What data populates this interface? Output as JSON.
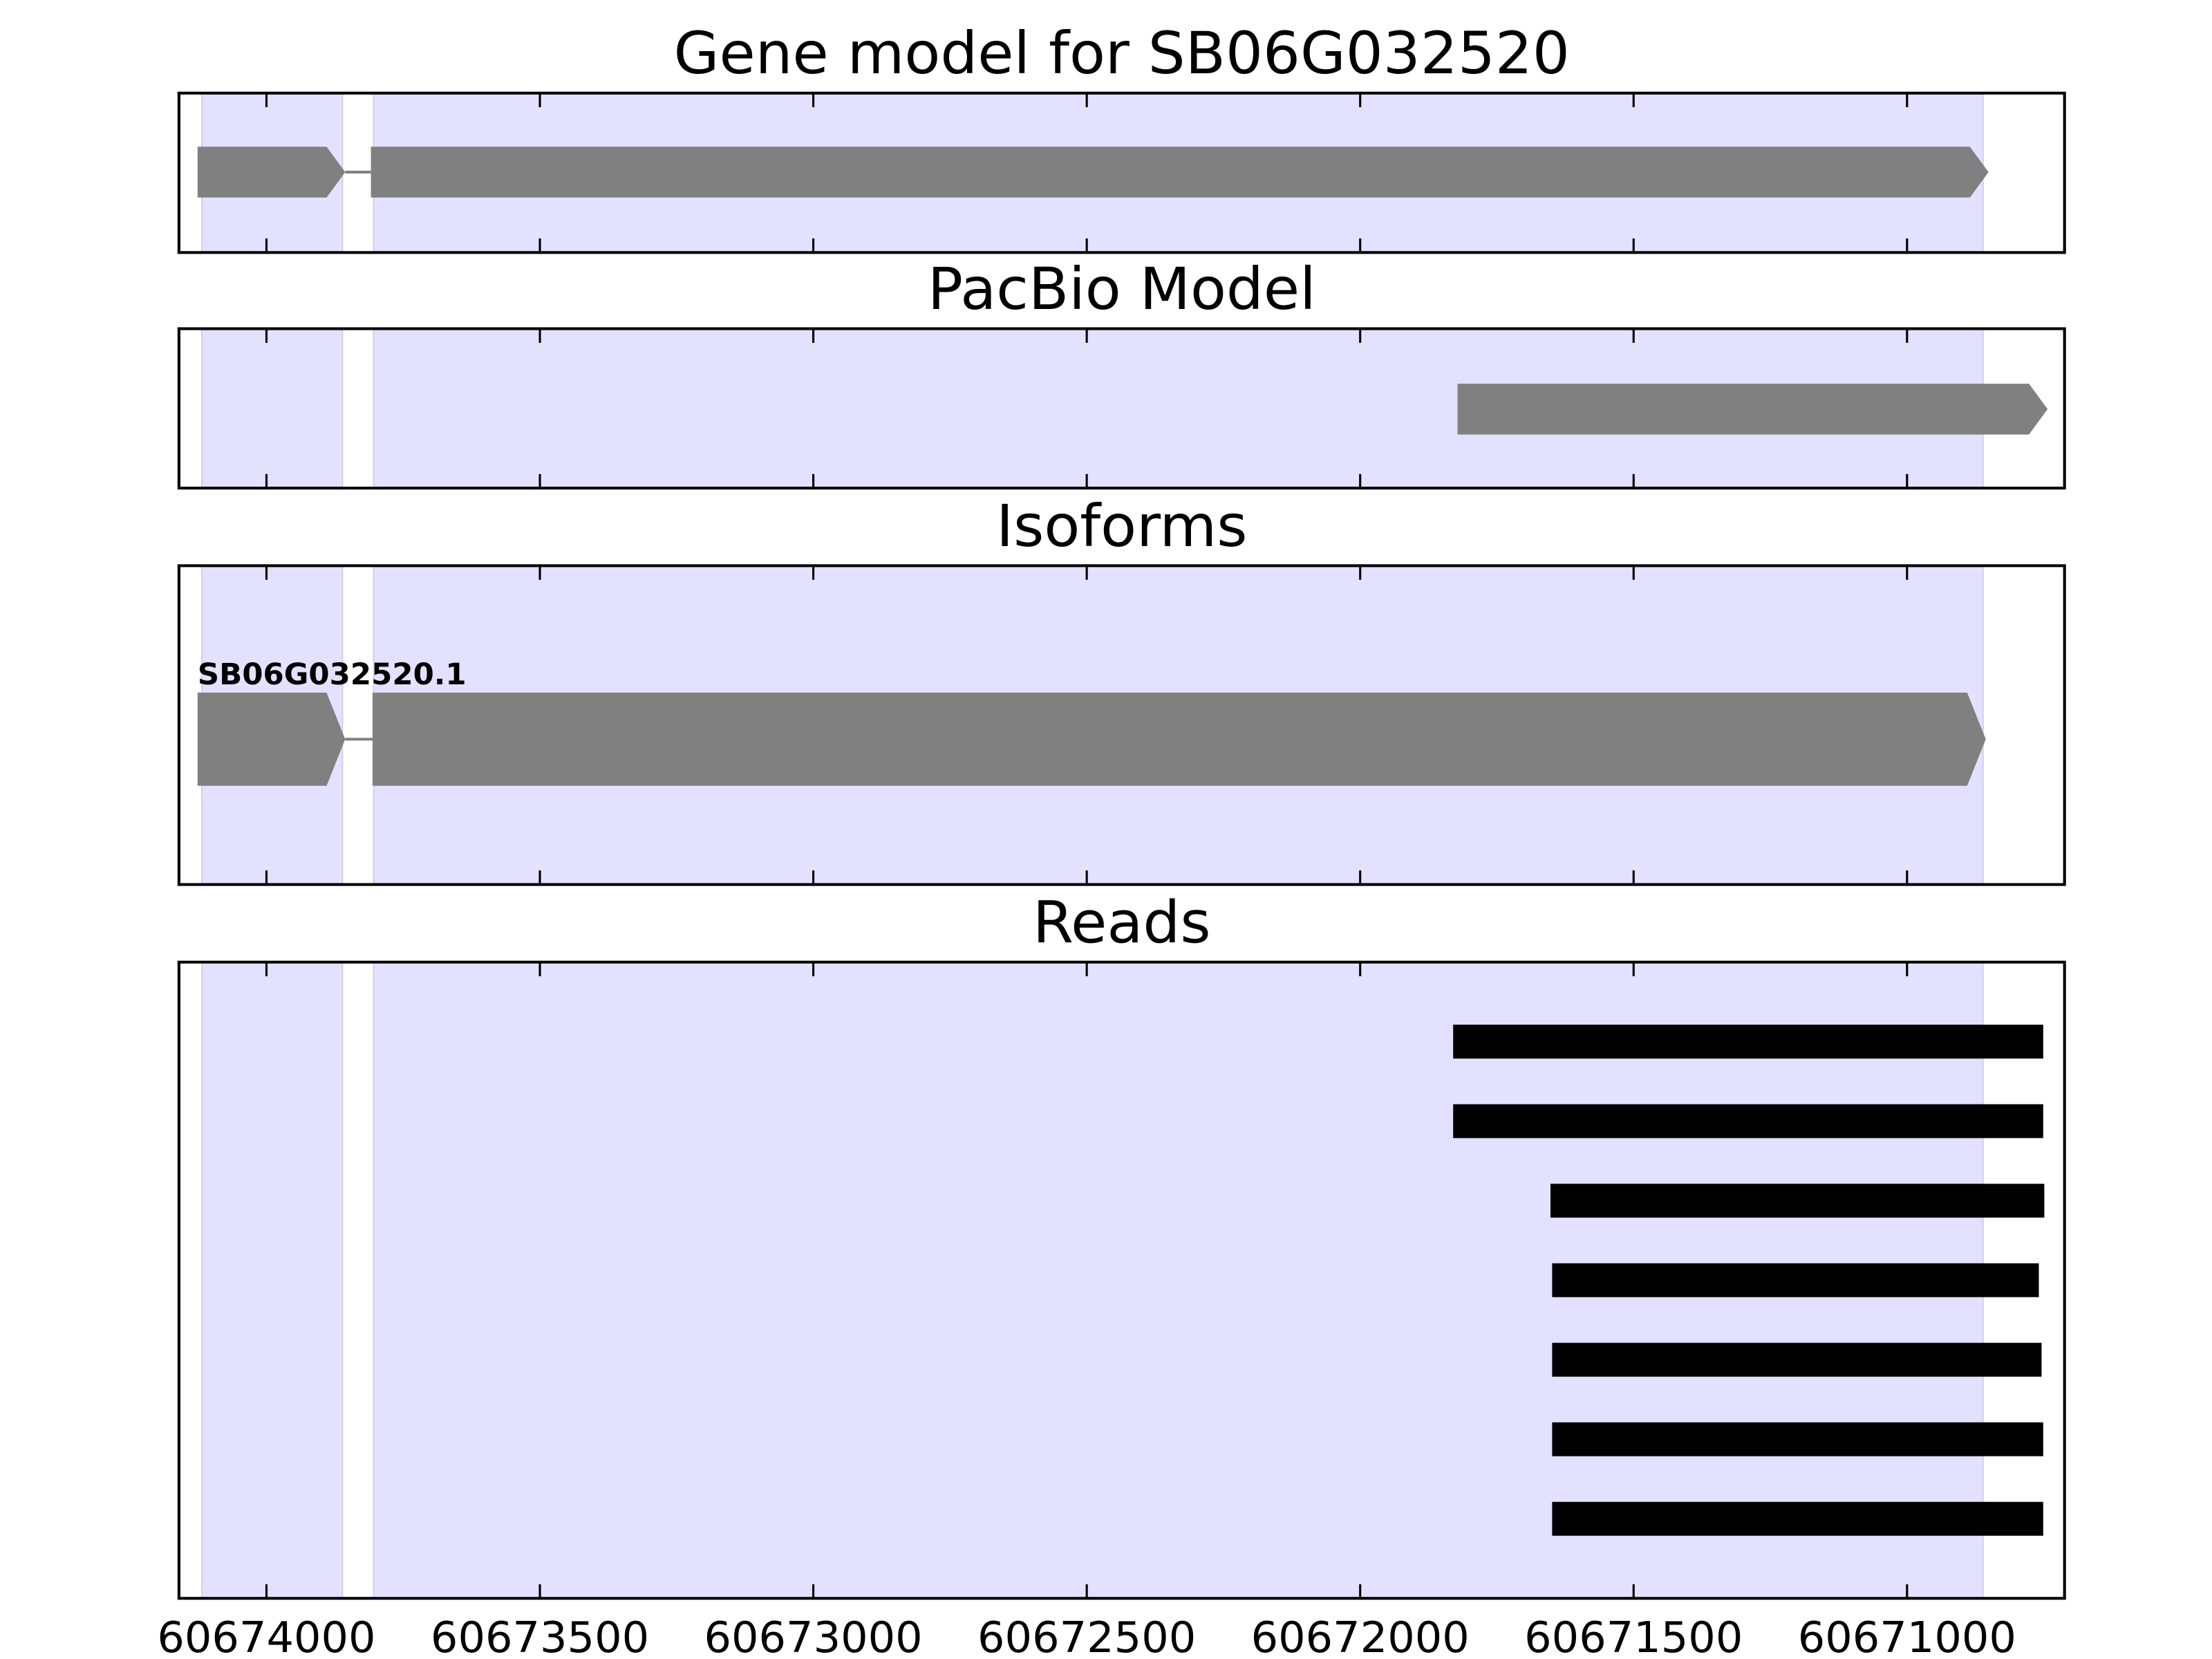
{
  "chart_data": [
    {
      "type": "gene_track",
      "title": "Gene model for SB06G032520",
      "xlim": [
        60674160,
        60670712
      ],
      "xticks": [
        60674000,
        60673500,
        60673000,
        60672500,
        60672000,
        60671500,
        60671000
      ],
      "highlight": [
        [
          60674118,
          60673861
        ],
        [
          60673804,
          60670861
        ]
      ],
      "highlight_color": "#e2e2ff",
      "color": "#808080",
      "features": [
        {
          "exons": [
            [
              60674126,
              60673856
            ],
            [
              60673809,
              60670851
            ]
          ]
        }
      ]
    },
    {
      "type": "gene_track",
      "title": "PacBio Model",
      "xlim": [
        60674160,
        60670712
      ],
      "xticks": [
        60674000,
        60673500,
        60673000,
        60672500,
        60672000,
        60671500,
        60671000
      ],
      "highlight": [
        [
          60674118,
          60673861
        ],
        [
          60673804,
          60670861
        ]
      ],
      "highlight_color": "#e2e2ff",
      "color": "#808080",
      "features": [
        {
          "exons": [
            [
              60671822,
              60670743
            ]
          ]
        }
      ]
    },
    {
      "type": "gene_track",
      "title": "Isoforms",
      "xlim": [
        60674160,
        60670712
      ],
      "xticks": [
        60674000,
        60673500,
        60673000,
        60672500,
        60672000,
        60671500,
        60671000
      ],
      "highlight": [
        [
          60674118,
          60673861
        ],
        [
          60673804,
          60670861
        ]
      ],
      "highlight_color": "#e2e2ff",
      "color": "#808080",
      "features": [
        {
          "name": "SB06G032520.1",
          "exons": [
            [
              60674126,
              60673856
            ],
            [
              60673806,
              60670856
            ]
          ]
        }
      ]
    },
    {
      "type": "reads",
      "title": "Reads",
      "xlim": [
        60674160,
        60670712
      ],
      "xticks": [
        60674000,
        60673500,
        60673000,
        60672500,
        60672000,
        60671500,
        60671000
      ],
      "highlight": [
        [
          60674118,
          60673861
        ],
        [
          60673804,
          60670861
        ]
      ],
      "highlight_color": "#e2e2ff",
      "color": "#000000",
      "reads": [
        [
          60671830,
          60670751
        ],
        [
          60671830,
          60670751
        ],
        [
          60671652,
          60670749
        ],
        [
          60671649,
          60670759
        ],
        [
          60671649,
          60670754
        ],
        [
          60671649,
          60670751
        ],
        [
          60671649,
          60670751
        ]
      ]
    }
  ]
}
